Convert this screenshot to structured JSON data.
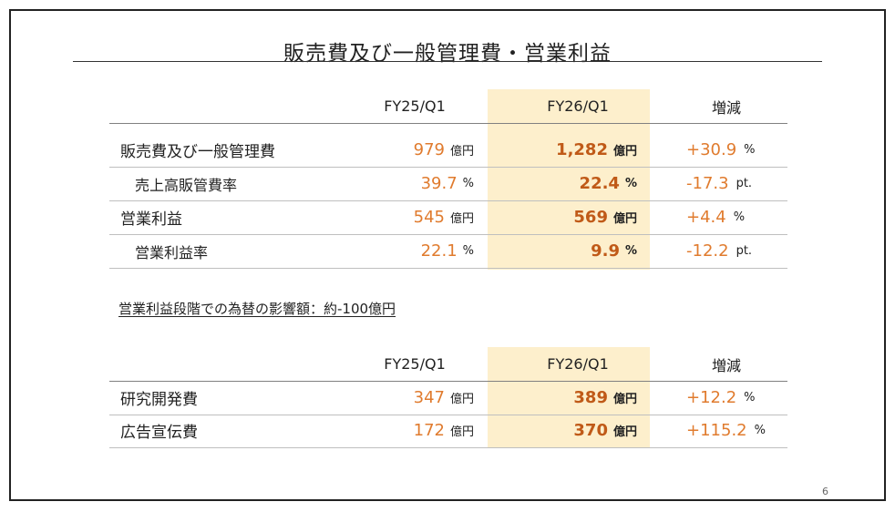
{
  "title": "販売費及び一般管理費・営業利益",
  "highlight_color": "#fdefcc",
  "value_color": "#e07b2e",
  "bold_value_color": "#c05a18",
  "table1": {
    "headers": [
      "FY25/Q1",
      "FY26/Q1",
      "増減"
    ],
    "rows": [
      {
        "label": "販売費及び一般管理費",
        "v1": "979",
        "u1": "億円",
        "v2": "1,282",
        "u2": "億円",
        "v3": "+30.9",
        "u3": "%"
      },
      {
        "label": "売上高販管費率",
        "v1": "39.7",
        "u1": "%",
        "v2": "22.4",
        "u2": "%",
        "v3": "-17.3",
        "u3": "pt."
      },
      {
        "label": "営業利益",
        "v1": "545",
        "u1": "億円",
        "v2": "569",
        "u2": "億円",
        "v3": "+4.4",
        "u3": "%"
      },
      {
        "label": "営業利益率",
        "v1": "22.1",
        "u1": "%",
        "v2": "9.9",
        "u2": "%",
        "v3": "-12.2",
        "u3": "pt."
      }
    ]
  },
  "note": "営業利益段階での為替の影響額：約-100億円",
  "table2": {
    "headers": [
      "FY25/Q1",
      "FY26/Q1",
      "増減"
    ],
    "rows": [
      {
        "label": "研究開発費",
        "v1": "347",
        "u1": "億円",
        "v2": "389",
        "u2": "億円",
        "v3": "+12.2",
        "u3": "%"
      },
      {
        "label": "広告宣伝費",
        "v1": "172",
        "u1": "億円",
        "v2": "370",
        "u2": "億円",
        "v3": "+115.2",
        "u3": "%"
      }
    ]
  },
  "page_number": "6"
}
